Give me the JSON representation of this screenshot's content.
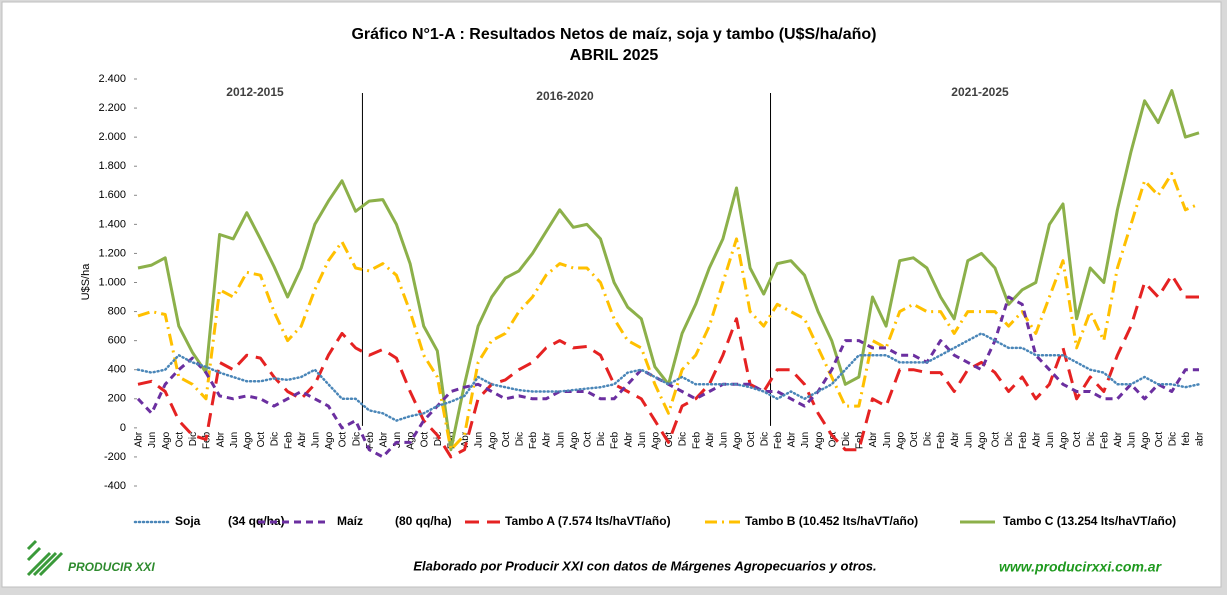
{
  "chart_data": {
    "type": "line",
    "title": "Gráfico N°1-A : Resultados Netos de maíz, soja y tambo (U$S/ha/año)",
    "subtitle": "ABRIL 2025",
    "y_label": "U$S/ha",
    "annotations": [
      "2012-2015",
      "2016-2020",
      "2021-2025"
    ],
    "footer": "Elaborado por Producir XXI con datos de Márgenes Agropecuarios y otros.",
    "logo": "PRODUCIR XXI",
    "website": "www.producirxxi.com.ar",
    "grid": false,
    "ylim": [
      -400,
      2400
    ],
    "yticks": [
      {
        "value": -400,
        "label": "-400"
      },
      {
        "value": -200,
        "label": "-200"
      },
      0,
      200,
      400,
      600,
      800,
      {
        "value": 1000,
        "label": "1.000"
      },
      {
        "value": 1200,
        "label": "1.200"
      },
      {
        "value": 1400,
        "label": "1.400"
      },
      {
        "value": 1600,
        "label": "1.600"
      },
      {
        "value": 1800,
        "label": "1.800"
      },
      {
        "value": 2000,
        "label": "2.000"
      },
      {
        "value": 2200,
        "label": "2.200"
      },
      {
        "value": 2400,
        "label": "2.400"
      }
    ],
    "categories": [
      "Abr",
      "Jun",
      "Ago",
      "Oct",
      "Dic",
      "Feb",
      "Abr",
      "Jun",
      "Ago",
      "Oct",
      "Dic",
      "Feb",
      "Abr",
      "Jun",
      "Ago",
      "Oct",
      "Dic",
      "Feb",
      "Abr",
      "Jun",
      "Ago",
      "Oct",
      "Dic",
      "Feb",
      "Abr",
      "Jun",
      "Ago",
      "Oct",
      "Dic",
      "Feb",
      "Abr",
      "Jun",
      "Ago",
      "Oct",
      "Dic",
      "Feb",
      "Abr",
      "Jun",
      "Ago",
      "Oct",
      "Dic",
      "Feb",
      "Abr",
      "Jun",
      "Ago",
      "Oct",
      "Dic",
      "Feb",
      "Abr",
      "Jun",
      "Ago",
      "Oct",
      "Dic",
      "Feb",
      "Abr",
      "Jun",
      "Ago",
      "Oct",
      "Dic",
      "Feb",
      "Abr",
      "Jun",
      "Ago",
      "Oct",
      "Dic",
      "Feb",
      "Abr",
      "Jun",
      "Ago",
      "Oct",
      "Dic",
      "Feb",
      "Abr",
      "Jun",
      "Ago",
      "Oct",
      "Dic",
      "feb",
      "abr"
    ],
    "series": [
      {
        "name": "Soja",
        "note": "(34 qq/ha)",
        "color": "#4a86b8",
        "style": "dotted",
        "values": [
          400,
          380,
          400,
          500,
          450,
          420,
          380,
          350,
          320,
          320,
          340,
          330,
          350,
          400,
          300,
          200,
          200,
          120,
          100,
          50,
          80,
          100,
          150,
          180,
          220,
          350,
          300,
          280,
          260,
          250,
          250,
          250,
          260,
          270,
          280,
          300,
          380,
          400,
          350,
          300,
          350,
          300,
          300,
          300,
          300,
          280,
          250,
          200,
          250,
          200,
          250,
          300,
          400,
          500,
          500,
          500,
          450,
          450,
          450,
          500,
          550,
          600,
          650,
          600,
          550,
          550,
          500,
          500,
          500,
          450,
          400,
          380,
          300,
          300,
          350,
          300,
          300,
          280,
          300
        ]
      },
      {
        "name": "Maíz",
        "note": "(80 qq/ha)",
        "color": "#6b2fa0",
        "style": "dashed",
        "values": [
          200,
          100,
          300,
          400,
          480,
          380,
          220,
          200,
          220,
          200,
          150,
          200,
          250,
          200,
          150,
          0,
          50,
          -150,
          -200,
          -100,
          -100,
          50,
          150,
          250,
          280,
          300,
          250,
          200,
          220,
          200,
          200,
          250,
          250,
          250,
          200,
          200,
          300,
          400,
          350,
          300,
          250,
          200,
          250,
          300,
          300,
          300,
          250,
          250,
          200,
          150,
          250,
          400,
          600,
          600,
          550,
          550,
          500,
          500,
          450,
          600,
          500,
          450,
          400,
          600,
          900,
          850,
          500,
          400,
          300,
          250,
          250,
          200,
          200,
          300,
          200,
          300,
          250,
          400,
          400
        ]
      },
      {
        "name": "Tambo  A (7.574 lts/haVT/año)",
        "color": "#e52222",
        "style": "longdash",
        "values": [
          300,
          320,
          250,
          50,
          -50,
          -80,
          450,
          400,
          500,
          480,
          350,
          250,
          200,
          300,
          500,
          650,
          550,
          500,
          540,
          480,
          250,
          50,
          -50,
          -200,
          -150,
          200,
          300,
          330,
          400,
          450,
          550,
          600,
          550,
          560,
          500,
          300,
          250,
          200,
          50,
          -100,
          150,
          200,
          300,
          500,
          750,
          300,
          250,
          400,
          400,
          300,
          100,
          -50,
          -150,
          -150,
          200,
          150,
          400,
          400,
          380,
          380,
          250,
          400,
          450,
          380,
          250,
          350,
          200,
          300,
          550,
          200,
          350,
          250,
          500,
          700,
          1000,
          900,
          1050,
          900,
          900
        ]
      },
      {
        "name": "Tambo B (10.452 lts/haVT/año)",
        "color": "#ffc000",
        "style": "dashdot",
        "values": [
          770,
          800,
          780,
          350,
          300,
          200,
          950,
          900,
          1070,
          1050,
          800,
          600,
          700,
          950,
          1150,
          1280,
          1100,
          1080,
          1130,
          1050,
          800,
          500,
          350,
          -150,
          -50,
          450,
          600,
          650,
          800,
          900,
          1050,
          1130,
          1100,
          1100,
          1000,
          750,
          600,
          550,
          300,
          100,
          400,
          500,
          700,
          1000,
          1300,
          800,
          700,
          850,
          800,
          750,
          550,
          350,
          150,
          150,
          600,
          550,
          800,
          850,
          800,
          800,
          650,
          800,
          800,
          800,
          700,
          800,
          650,
          900,
          1150,
          550,
          800,
          600,
          1100,
          1400,
          1700,
          1600,
          1750,
          1500,
          1540
        ]
      },
      {
        "name": "Tambo C (13.254 lts/haVT/año)",
        "color": "#8cb04a",
        "style": "solid",
        "values": [
          1100,
          1120,
          1170,
          700,
          520,
          380,
          1330,
          1300,
          1480,
          1300,
          1110,
          900,
          1100,
          1400,
          1560,
          1700,
          1490,
          1560,
          1570,
          1400,
          1130,
          700,
          530,
          -150,
          300,
          700,
          900,
          1030,
          1080,
          1200,
          1350,
          1500,
          1380,
          1400,
          1300,
          1000,
          830,
          750,
          420,
          300,
          650,
          850,
          1100,
          1300,
          1650,
          1100,
          920,
          1130,
          1150,
          1050,
          800,
          600,
          300,
          350,
          900,
          700,
          1150,
          1170,
          1100,
          900,
          750,
          1150,
          1200,
          1100,
          850,
          950,
          1000,
          1400,
          1540,
          750,
          1100,
          1000,
          1500,
          1900,
          2250,
          2100,
          2320,
          2000,
          2030
        ]
      }
    ]
  }
}
